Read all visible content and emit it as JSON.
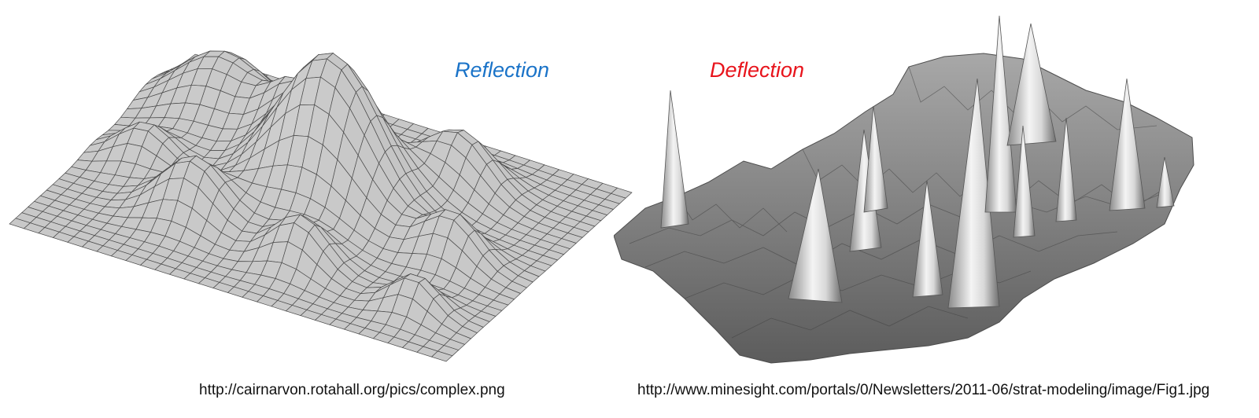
{
  "left": {
    "label": "Reflection",
    "label_color": "#1a73c8",
    "caption": "http://cairnarvon.rotahall.org/pics/complex.png",
    "image": "wireframe-gaussian-surface"
  },
  "right": {
    "label": "Deflection",
    "label_color": "#e8141c",
    "caption": "http://www.minesight.com/portals/0/Newsletters/2011-06/strat-modeling/image/Fig1.jpg",
    "image": "spiky-terrain-surface"
  }
}
